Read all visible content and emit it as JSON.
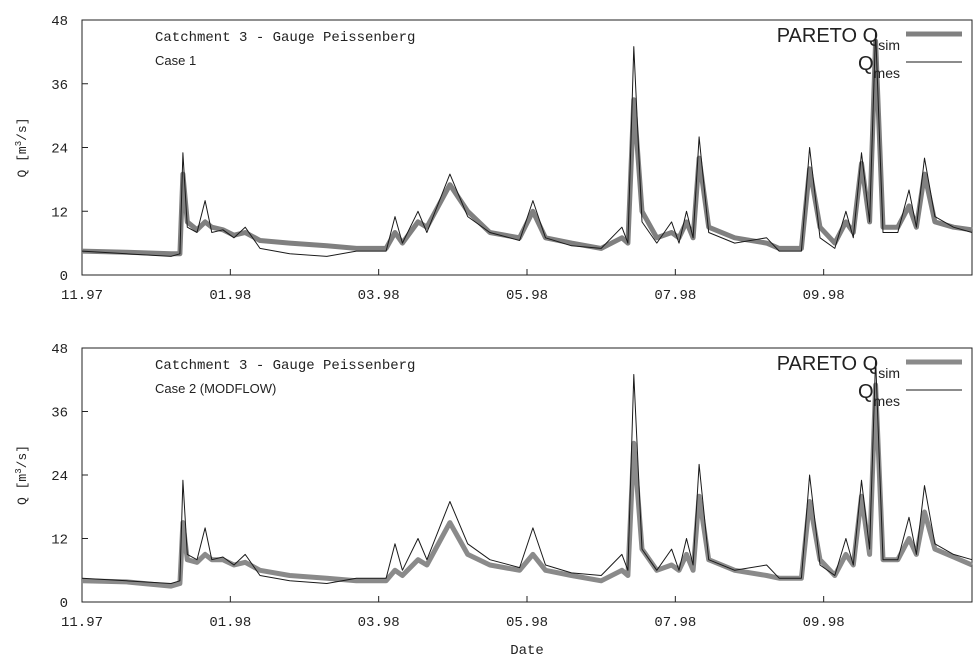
{
  "chart_data": [
    {
      "type": "line",
      "title": "Catchment 3 - Gauge Peissenberg",
      "subtitle": "Case 1",
      "ylabel": [
        "Q [m",
        "3",
        "/s]"
      ],
      "x": [
        0,
        0.6,
        1.2,
        1.32,
        1.36,
        1.42,
        1.55,
        1.66,
        1.75,
        1.9,
        2.05,
        2.2,
        2.4,
        2.8,
        3.3,
        3.7,
        4.1,
        4.22,
        4.32,
        4.53,
        4.65,
        4.96,
        5.2,
        5.5,
        5.9,
        6.08,
        6.25,
        6.6,
        7.0,
        7.28,
        7.36,
        7.44,
        7.55,
        7.75,
        7.95,
        8.05,
        8.15,
        8.24,
        8.32,
        8.45,
        8.8,
        9.23,
        9.4,
        9.7,
        9.81,
        9.95,
        10.15,
        10.3,
        10.4,
        10.51,
        10.62,
        10.7,
        10.8,
        11.0,
        11.15,
        11.25,
        11.36,
        11.5,
        11.75,
        12
      ],
      "xlim": [
        0,
        12
      ],
      "xticks": [
        {
          "value": 0,
          "label": "11.97"
        },
        {
          "value": 2,
          "label": "01.98"
        },
        {
          "value": 4,
          "label": "03.98"
        },
        {
          "value": 6,
          "label": "05.98"
        },
        {
          "value": 8,
          "label": "07.98"
        },
        {
          "value": 10,
          "label": "09.98"
        }
      ],
      "ylim": [
        0,
        48
      ],
      "yticks": [
        0,
        12,
        24,
        36,
        48
      ],
      "legend": "upper right",
      "series": [
        {
          "name": "PARETO Q",
          "subscript": "sim",
          "color": "#808080",
          "values": [
            4.5,
            4.3,
            4,
            4,
            19,
            10,
            8.5,
            10,
            9,
            8.5,
            7.5,
            8,
            6.5,
            6,
            5.5,
            5,
            5,
            8,
            6,
            10,
            9,
            17,
            12,
            8,
            7,
            12,
            7,
            6,
            5,
            7,
            6,
            33,
            12,
            7,
            8,
            7,
            10,
            7,
            22,
            9,
            7,
            6,
            5,
            5,
            20,
            9,
            6,
            10,
            8,
            21,
            10,
            44,
            9,
            9,
            13,
            9,
            19,
            10,
            9,
            8.5
          ]
        },
        {
          "name": "Q",
          "subscript": "mes",
          "color": "#1a1a1a",
          "values": [
            4.5,
            4,
            3.5,
            4,
            23,
            9,
            8,
            14,
            8,
            8.5,
            7,
            9,
            5,
            4,
            3.5,
            4.5,
            4.5,
            11,
            6,
            12,
            8,
            19,
            11,
            8,
            6.5,
            14,
            7,
            5.5,
            5,
            9,
            6,
            43,
            10,
            6,
            10,
            6,
            12,
            7,
            26,
            8,
            6,
            7,
            4.5,
            4.5,
            24,
            7,
            5,
            12,
            7,
            23,
            10,
            46,
            8,
            8,
            16,
            9,
            22,
            11,
            9,
            8
          ]
        }
      ]
    },
    {
      "type": "line",
      "title": "Catchment 3 - Gauge Peissenberg",
      "subtitle": "Case 2 (MODFLOW)",
      "ylabel": [
        "Q [m",
        "3",
        "/s]"
      ],
      "xlabel": "Date",
      "x": [
        0,
        0.6,
        1.2,
        1.32,
        1.36,
        1.42,
        1.55,
        1.66,
        1.75,
        1.9,
        2.05,
        2.2,
        2.4,
        2.8,
        3.3,
        3.7,
        4.1,
        4.22,
        4.32,
        4.53,
        4.65,
        4.96,
        5.2,
        5.5,
        5.9,
        6.08,
        6.25,
        6.6,
        7.0,
        7.28,
        7.36,
        7.44,
        7.55,
        7.75,
        7.95,
        8.05,
        8.15,
        8.24,
        8.32,
        8.45,
        8.8,
        9.23,
        9.4,
        9.7,
        9.81,
        9.95,
        10.15,
        10.3,
        10.4,
        10.51,
        10.62,
        10.7,
        10.8,
        11.0,
        11.15,
        11.25,
        11.36,
        11.5,
        11.75,
        12
      ],
      "xlim": [
        0,
        12
      ],
      "xticks": [
        {
          "value": 0,
          "label": "11.97"
        },
        {
          "value": 2,
          "label": "01.98"
        },
        {
          "value": 4,
          "label": "03.98"
        },
        {
          "value": 6,
          "label": "05.98"
        },
        {
          "value": 8,
          "label": "07.98"
        },
        {
          "value": 10,
          "label": "09.98"
        }
      ],
      "ylim": [
        0,
        48
      ],
      "yticks": [
        0,
        12,
        24,
        36,
        48
      ],
      "legend": "upper right",
      "series": [
        {
          "name": "PARETO Q",
          "subscript": "sim",
          "color": "#8a8a8a",
          "values": [
            4,
            3.8,
            3,
            3.5,
            15,
            8,
            7.5,
            9,
            8,
            8,
            7,
            7.5,
            6,
            5,
            4.5,
            4,
            4,
            6,
            5,
            8,
            7,
            15,
            9,
            7,
            6,
            9,
            6,
            5,
            4,
            6,
            5,
            30,
            10,
            6,
            7,
            6,
            9,
            6,
            20,
            8,
            6,
            5,
            4.5,
            4.5,
            19,
            8,
            5,
            9,
            7,
            20,
            9,
            41,
            8,
            8,
            12,
            9,
            17,
            10,
            8.5,
            7
          ]
        },
        {
          "name": "Q",
          "subscript": "mes",
          "color": "#1a1a1a",
          "values": [
            4.5,
            4,
            3.5,
            4,
            23,
            9,
            8,
            14,
            8,
            8.5,
            7,
            9,
            5,
            4,
            3.5,
            4.5,
            4.5,
            11,
            6,
            12,
            8,
            19,
            11,
            8,
            6.5,
            14,
            7,
            5.5,
            5,
            9,
            6,
            43,
            10,
            6,
            10,
            6,
            12,
            7,
            26,
            8,
            6,
            7,
            4.5,
            4.5,
            24,
            7,
            5,
            12,
            7,
            23,
            10,
            46,
            8,
            8,
            16,
            9,
            22,
            11,
            9,
            8
          ]
        }
      ]
    }
  ]
}
